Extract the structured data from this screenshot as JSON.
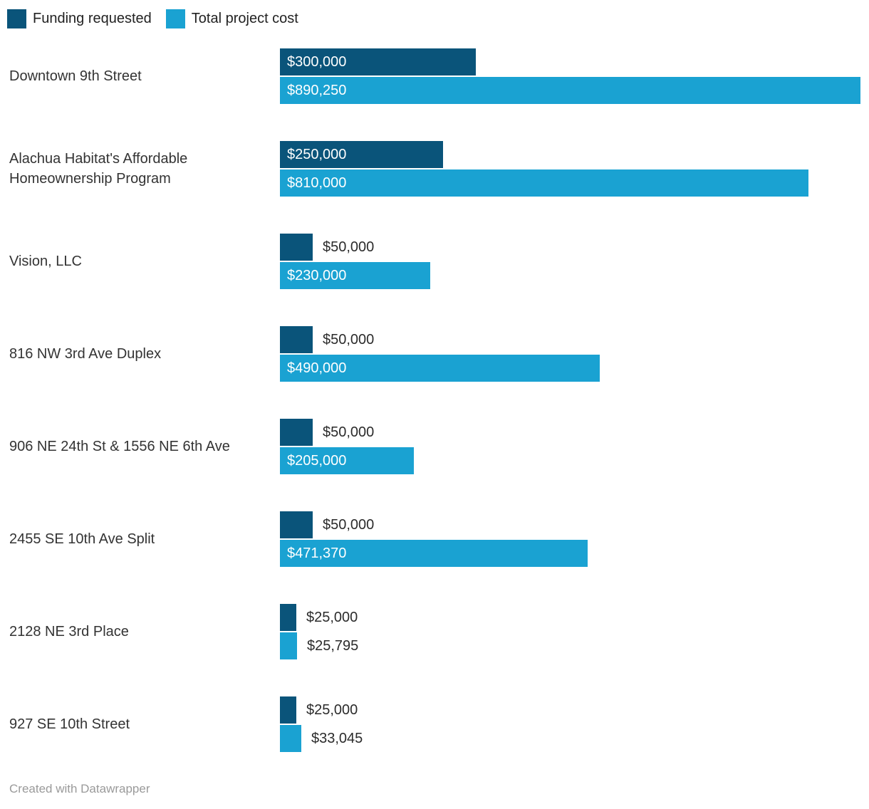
{
  "legend": {
    "items": [
      {
        "label": "Funding requested",
        "color": "#0a547a"
      },
      {
        "label": "Total project cost",
        "color": "#1aa2d2"
      }
    ]
  },
  "footer": {
    "attribution": "Created with Datawrapper"
  },
  "chart_data": {
    "type": "bar",
    "orientation": "horizontal",
    "grid": false,
    "legend_position": "top-left",
    "xlim": [
      0,
      890250
    ],
    "value_format": "$#,##0",
    "categories": [
      "Downtown 9th Street",
      "Alachua Habitat's Affordable Homeownership Program",
      "Vision, LLC",
      "816 NW 3rd Ave Duplex",
      "906 NE 24th St & 1556 NE 6th Ave",
      "2455 SE 10th Ave Split",
      "2128 NE 3rd Place",
      "927 SE 10th Street"
    ],
    "series": [
      {
        "name": "Funding requested",
        "color": "#0a547a",
        "values": [
          300000,
          250000,
          50000,
          50000,
          50000,
          50000,
          25000,
          25000
        ],
        "labels": [
          "$300,000",
          "$250,000",
          "$50,000",
          "$50,000",
          "$50,000",
          "$50,000",
          "$25,000",
          "$25,000"
        ]
      },
      {
        "name": "Total project cost",
        "color": "#1aa2d2",
        "values": [
          890250,
          810000,
          230000,
          490000,
          205000,
          471370,
          25795,
          33045
        ],
        "labels": [
          "$890,250",
          "$810,000",
          "$230,000",
          "$490,000",
          "$205,000",
          "$471,370",
          "$25,795",
          "$33,045"
        ]
      }
    ]
  }
}
